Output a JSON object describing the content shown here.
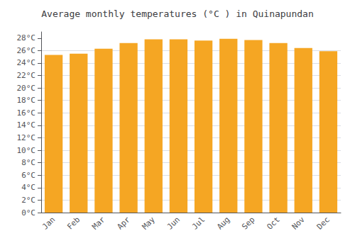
{
  "chart_data": {
    "type": "bar",
    "title": "Average monthly temperatures (°C ) in Quinapundan",
    "categories": [
      "Jan",
      "Feb",
      "Mar",
      "Apr",
      "May",
      "Jun",
      "Jul",
      "Aug",
      "Sep",
      "Oct",
      "Nov",
      "Dec"
    ],
    "values": [
      25.3,
      25.5,
      26.3,
      27.2,
      27.8,
      27.8,
      27.6,
      27.9,
      27.7,
      27.2,
      26.4,
      25.9
    ],
    "color": "#F5A623",
    "ylim": [
      0,
      29
    ],
    "yticks": [
      {
        "value": 0,
        "label": "0°C"
      },
      {
        "value": 2,
        "label": "2°C"
      },
      {
        "value": 4,
        "label": "4°C"
      },
      {
        "value": 6,
        "label": "6°C"
      },
      {
        "value": 8,
        "label": "8°C"
      },
      {
        "value": 10,
        "label": "10°C"
      },
      {
        "value": 12,
        "label": "12°C"
      },
      {
        "value": 14,
        "label": "14°C"
      },
      {
        "value": 16,
        "label": "16°C"
      },
      {
        "value": 18,
        "label": "18°C"
      },
      {
        "value": 20,
        "label": "20°C"
      },
      {
        "value": 22,
        "label": "22°C"
      },
      {
        "value": 24,
        "label": "24°C"
      },
      {
        "value": 26,
        "label": "26°C"
      },
      {
        "value": 28,
        "label": "28°C"
      }
    ],
    "grid": true
  }
}
